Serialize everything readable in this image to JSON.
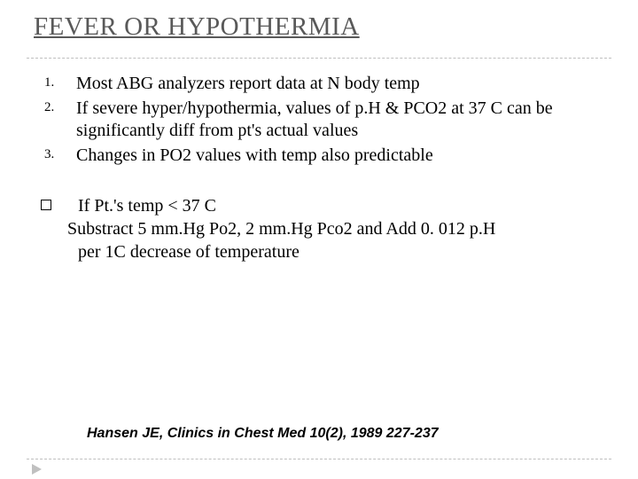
{
  "title": "FEVER OR HYPOTHERMIA",
  "title_color": "#595959",
  "title_fontsize": 29,
  "divider_color": "#bfbfbf",
  "background_color": "#ffffff",
  "text_color": "#000000",
  "body_fontsize": 20,
  "ordered": {
    "num1": "1.",
    "num2": "2.",
    "num3": "3.",
    "item1": "Most ABG analyzers report data at N body temp",
    "item2": "If severe hyper/hypothermia, values of p.H & PCO2 at 37 C can be significantly diff from pt's actual values",
    "item3": "Changes in PO2 values with temp also predictable"
  },
  "bullet": {
    "line1": "If Pt.'s temp < 37 C",
    "line2": "Substract 5 mm.Hg Po2, 2 mm.Hg Pco2  and Add 0. 012 p.H",
    "line3": "per 1C decrease of temperature"
  },
  "citation": "Hansen JE, Clinics in Chest Med 10(2), 1989 227-237",
  "citation_fontsize": 16,
  "play_icon_color": "#c0c0c0"
}
